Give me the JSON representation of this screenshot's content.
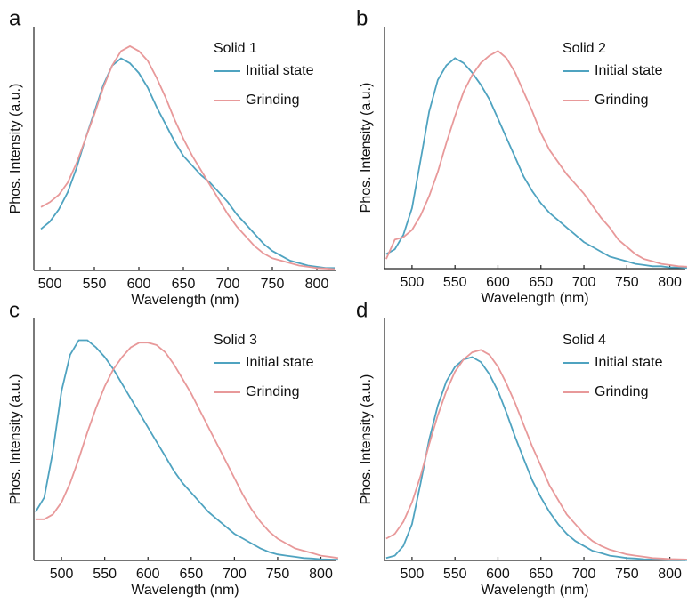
{
  "chart_data": [
    {
      "type": "line",
      "label": "a",
      "legend_title": "Solid 1",
      "xlabel": "Wavelength (nm)",
      "ylabel": "Phos. Intensity (a.u.)",
      "x": [
        490,
        500,
        510,
        520,
        530,
        540,
        550,
        560,
        570,
        580,
        590,
        600,
        610,
        620,
        630,
        640,
        650,
        660,
        670,
        680,
        690,
        700,
        710,
        720,
        730,
        740,
        750,
        760,
        770,
        780,
        790,
        800,
        810,
        820
      ],
      "series": [
        {
          "name": "Initial state",
          "color": "#4fa3c0",
          "values": [
            0.17,
            0.2,
            0.25,
            0.32,
            0.42,
            0.54,
            0.65,
            0.76,
            0.84,
            0.87,
            0.85,
            0.81,
            0.75,
            0.67,
            0.6,
            0.53,
            0.47,
            0.43,
            0.39,
            0.36,
            0.32,
            0.28,
            0.23,
            0.19,
            0.15,
            0.11,
            0.08,
            0.06,
            0.04,
            0.03,
            0.02,
            0.015,
            0.01,
            0.01
          ]
        },
        {
          "name": "Grinding",
          "color": "#e8999a",
          "values": [
            0.26,
            0.28,
            0.31,
            0.36,
            0.44,
            0.54,
            0.64,
            0.75,
            0.84,
            0.9,
            0.92,
            0.9,
            0.86,
            0.79,
            0.71,
            0.62,
            0.54,
            0.47,
            0.41,
            0.35,
            0.29,
            0.23,
            0.18,
            0.14,
            0.1,
            0.07,
            0.05,
            0.04,
            0.03,
            0.02,
            0.015,
            0.01,
            0.008,
            0.005
          ]
        }
      ],
      "xlim": [
        482,
        822
      ],
      "ylim": [
        0,
        1
      ],
      "xticks": [
        500,
        550,
        600,
        650,
        700,
        750,
        800
      ]
    },
    {
      "type": "line",
      "label": "b",
      "legend_title": "Solid 2",
      "xlabel": "Wavelength (nm)",
      "ylabel": "Phos. Intensity (a.u.)",
      "x": [
        470,
        480,
        490,
        500,
        510,
        520,
        530,
        540,
        550,
        560,
        570,
        580,
        590,
        600,
        610,
        620,
        630,
        640,
        650,
        660,
        670,
        680,
        690,
        700,
        710,
        720,
        730,
        740,
        750,
        760,
        770,
        780,
        790,
        800,
        810,
        820
      ],
      "series": [
        {
          "name": "Initial state",
          "color": "#4fa3c0",
          "values": [
            0.06,
            0.08,
            0.14,
            0.25,
            0.45,
            0.65,
            0.78,
            0.84,
            0.87,
            0.85,
            0.81,
            0.76,
            0.7,
            0.62,
            0.54,
            0.46,
            0.38,
            0.32,
            0.27,
            0.23,
            0.2,
            0.17,
            0.14,
            0.11,
            0.09,
            0.07,
            0.05,
            0.04,
            0.03,
            0.02,
            0.015,
            0.01,
            0.01,
            0.005,
            0.005,
            0.003
          ]
        },
        {
          "name": "Grinding",
          "color": "#e8999a",
          "values": [
            0.04,
            0.12,
            0.13,
            0.16,
            0.22,
            0.3,
            0.4,
            0.52,
            0.63,
            0.73,
            0.8,
            0.85,
            0.88,
            0.9,
            0.87,
            0.81,
            0.73,
            0.65,
            0.56,
            0.49,
            0.44,
            0.39,
            0.35,
            0.31,
            0.26,
            0.21,
            0.17,
            0.12,
            0.09,
            0.06,
            0.04,
            0.03,
            0.02,
            0.015,
            0.01,
            0.008
          ]
        }
      ],
      "xlim": [
        468,
        818
      ],
      "ylim": [
        0,
        1
      ],
      "xticks": [
        500,
        550,
        600,
        650,
        700,
        750,
        800
      ]
    },
    {
      "type": "line",
      "label": "c",
      "legend_title": "Solid 3",
      "xlabel": "Wavelength (nm)",
      "ylabel": "Phos. Intensity (a.u.)",
      "x": [
        470,
        480,
        490,
        500,
        510,
        520,
        530,
        540,
        550,
        560,
        570,
        580,
        590,
        600,
        610,
        620,
        630,
        640,
        650,
        660,
        670,
        680,
        690,
        700,
        710,
        720,
        730,
        740,
        750,
        760,
        770,
        780,
        790,
        800,
        810,
        820
      ],
      "series": [
        {
          "name": "Initial state",
          "color": "#4fa3c0",
          "values": [
            0.2,
            0.26,
            0.45,
            0.7,
            0.85,
            0.91,
            0.91,
            0.88,
            0.84,
            0.79,
            0.73,
            0.67,
            0.61,
            0.55,
            0.49,
            0.43,
            0.37,
            0.32,
            0.28,
            0.24,
            0.2,
            0.17,
            0.14,
            0.11,
            0.09,
            0.07,
            0.05,
            0.035,
            0.025,
            0.02,
            0.015,
            0.01,
            0.008,
            0.005,
            0.004,
            0.003
          ]
        },
        {
          "name": "Grinding",
          "color": "#e8999a",
          "values": [
            0.17,
            0.17,
            0.19,
            0.24,
            0.32,
            0.42,
            0.53,
            0.63,
            0.72,
            0.79,
            0.84,
            0.88,
            0.9,
            0.9,
            0.89,
            0.86,
            0.81,
            0.75,
            0.69,
            0.62,
            0.55,
            0.48,
            0.41,
            0.34,
            0.27,
            0.21,
            0.16,
            0.12,
            0.09,
            0.07,
            0.05,
            0.04,
            0.03,
            0.02,
            0.015,
            0.01
          ]
        }
      ],
      "xlim": [
        468,
        818
      ],
      "ylim": [
        0,
        1
      ],
      "xticks": [
        500,
        550,
        600,
        650,
        700,
        750,
        800
      ]
    },
    {
      "type": "line",
      "label": "d",
      "legend_title": "Solid 4",
      "xlabel": "Wavelength (nm)",
      "ylabel": "Phos. Intensity (a.u.)",
      "x": [
        470,
        480,
        490,
        500,
        510,
        520,
        530,
        540,
        550,
        560,
        570,
        580,
        590,
        600,
        610,
        620,
        630,
        640,
        650,
        660,
        670,
        680,
        690,
        700,
        710,
        720,
        730,
        740,
        750,
        760,
        770,
        780,
        790,
        800,
        810,
        820
      ],
      "series": [
        {
          "name": "Initial state",
          "color": "#4fa3c0",
          "values": [
            0.01,
            0.02,
            0.06,
            0.15,
            0.32,
            0.5,
            0.64,
            0.74,
            0.8,
            0.83,
            0.84,
            0.82,
            0.77,
            0.7,
            0.61,
            0.51,
            0.42,
            0.33,
            0.26,
            0.2,
            0.15,
            0.11,
            0.08,
            0.06,
            0.04,
            0.03,
            0.02,
            0.015,
            0.01,
            0.008,
            0.005,
            0.004,
            0.003,
            0.002,
            0.002,
            0.001
          ]
        },
        {
          "name": "Grinding",
          "color": "#e8999a",
          "values": [
            0.09,
            0.11,
            0.16,
            0.24,
            0.35,
            0.48,
            0.6,
            0.7,
            0.78,
            0.83,
            0.86,
            0.87,
            0.85,
            0.8,
            0.73,
            0.65,
            0.56,
            0.47,
            0.39,
            0.31,
            0.25,
            0.19,
            0.15,
            0.11,
            0.08,
            0.06,
            0.045,
            0.035,
            0.025,
            0.02,
            0.015,
            0.01,
            0.008,
            0.006,
            0.005,
            0.004
          ]
        }
      ],
      "xlim": [
        468,
        818
      ],
      "ylim": [
        0,
        1
      ],
      "xticks": [
        500,
        550,
        600,
        650,
        700,
        750,
        800
      ]
    }
  ]
}
